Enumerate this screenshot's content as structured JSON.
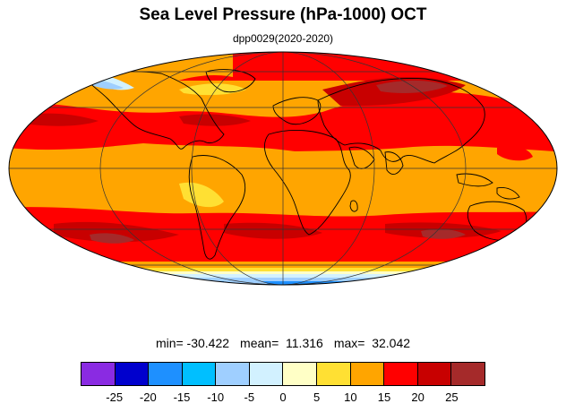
{
  "title": "Sea Level Pressure (hPa-1000) OCT",
  "subtitle": "dpp0029(2020-2020)",
  "stats": {
    "min_label": "min= -30.422",
    "mean_label": "mean=  11.316",
    "max_label": "max=  32.042"
  },
  "colorbar": {
    "colors": [
      "#8a2be2",
      "#0000cd",
      "#1e90ff",
      "#00bfff",
      "#9fcfff",
      "#d2f1ff",
      "#ffffc6",
      "#ffe033",
      "#ffa500",
      "#ff0000",
      "#c80000",
      "#a52a2a"
    ],
    "ticks": [
      "-25",
      "-20",
      "-15",
      "-10",
      "-5",
      "0",
      "5",
      "10",
      "15",
      "20",
      "25"
    ]
  },
  "map": {
    "projection": "Mollweide",
    "field": "Sea Level Pressure anomaly (hPa-1000)"
  }
}
